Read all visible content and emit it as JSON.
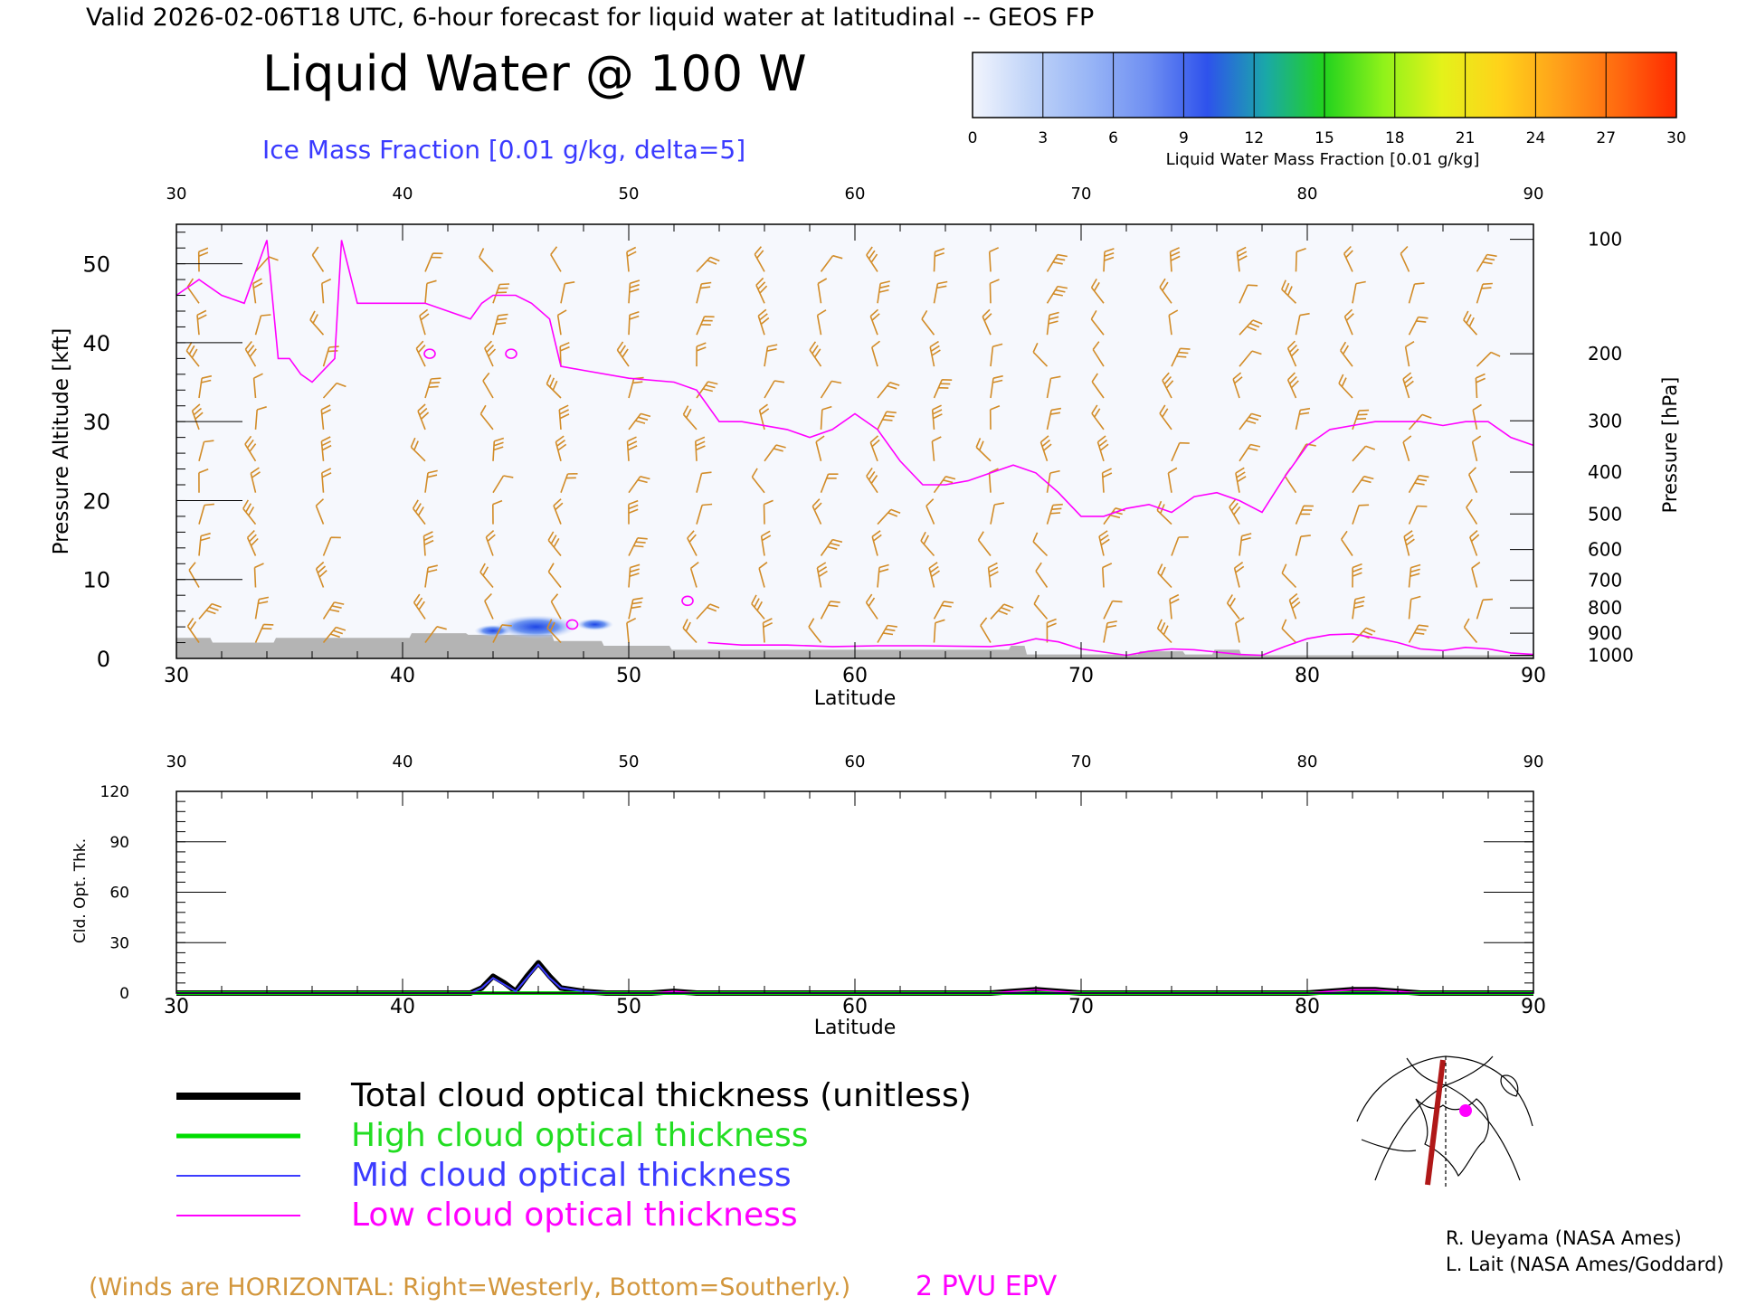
{
  "header": {
    "valid_line": "Valid 2026-02-06T18 UTC, 6-hour forecast for liquid water at latitudinal -- GEOS FP",
    "title": "Liquid Water @ 100 W",
    "subtitle": "Ice Mass Fraction [0.01 g/kg, delta=5]"
  },
  "colorbar": {
    "ticks": [
      "0",
      "3",
      "6",
      "9",
      "12",
      "15",
      "18",
      "21",
      "24",
      "27",
      "30"
    ],
    "label": "Liquid Water Mass Fraction [0.01 g/kg]",
    "colors": [
      "#f2f5fd",
      "#bfd3f8",
      "#98b5f6",
      "#6f8ff2",
      "#2e52ec",
      "#1aa8a8",
      "#22d21e",
      "#8ff21a",
      "#e4f21a",
      "#ffd21a",
      "#ffa01a",
      "#ff6a10",
      "#ff2a00"
    ]
  },
  "colors": {
    "wind_barb": "#d28c28",
    "epv_line": "#ff00ff",
    "terrain": "#b4b4b4",
    "high_cloud": "#00dd00",
    "mid_cloud": "#3c3cff",
    "low_cloud": "#ff00ff",
    "total_cloud": "#000000"
  },
  "chart_data": [
    {
      "type": "heatmap",
      "title": "Liquid Water @ 100 W",
      "xlabel": "Latitude",
      "ylabel": "Pressure Altitude [kft]",
      "ylabel_right": "Pressure [hPa]",
      "xlim": [
        30,
        90
      ],
      "ylim": [
        0,
        55
      ],
      "x_ticks": [
        "30",
        "40",
        "50",
        "60",
        "70",
        "80",
        "90"
      ],
      "y_ticks": [
        "0",
        "10",
        "20",
        "30",
        "40",
        "50"
      ],
      "pressure_ticks": [
        {
          "label": "100",
          "kft": 53.1
        },
        {
          "label": "200",
          "kft": 38.6
        },
        {
          "label": "300",
          "kft": 30.1
        },
        {
          "label": "400",
          "kft": 23.6
        },
        {
          "label": "500",
          "kft": 18.3
        },
        {
          "label": "600",
          "kft": 13.8
        },
        {
          "label": "700",
          "kft": 9.9
        },
        {
          "label": "800",
          "kft": 6.4
        },
        {
          "label": "900",
          "kft": 3.2
        },
        {
          "label": "1000",
          "kft": 0.4
        }
      ],
      "epv_2pvu_line": {
        "lat": [
          30,
          31,
          32,
          33,
          33.5,
          34,
          34.5,
          35,
          35.5,
          36,
          37,
          37.3,
          38,
          39,
          40,
          41,
          42,
          43,
          43.5,
          44,
          45,
          45.7,
          46.5,
          47,
          48,
          50,
          52,
          53,
          54,
          55,
          57,
          58,
          59,
          60,
          61,
          62,
          63,
          64,
          65,
          66,
          67,
          68,
          69,
          70,
          71,
          72,
          73,
          74,
          75,
          76,
          77,
          78,
          79,
          80,
          81,
          82,
          83,
          84,
          85,
          86,
          87,
          88,
          89,
          90
        ],
        "kft": [
          46,
          48,
          46,
          45,
          49,
          53,
          38,
          38,
          36,
          35,
          38,
          53,
          45,
          45,
          45,
          45,
          44,
          43,
          45,
          46,
          46,
          45,
          43,
          37,
          36.5,
          35.5,
          35,
          34,
          30,
          30,
          29,
          28,
          29,
          31,
          29,
          25,
          22,
          22,
          22.5,
          23.5,
          24.5,
          23.5,
          21,
          18,
          18,
          19,
          19.5,
          18.5,
          20.5,
          21,
          20,
          18.5,
          23,
          27,
          29,
          29.5,
          30,
          30,
          30,
          29.5,
          30,
          30,
          28,
          27
        ]
      },
      "epv_small_contours": [
        {
          "lat": 41.2,
          "kft": 38.6
        },
        {
          "lat": 44.8,
          "kft": 38.6
        },
        {
          "lat": 47.5,
          "kft": 4.3
        },
        {
          "lat": 52.6,
          "kft": 7.3
        }
      ],
      "ice_mass_fraction_patches": [
        {
          "lat": 45.9,
          "kft": 4.0,
          "value": 10
        },
        {
          "lat": 44.0,
          "kft": 3.5,
          "value": 3
        },
        {
          "lat": 48.5,
          "kft": 4.3,
          "value": 3
        }
      ],
      "low_cloud_top_line": {
        "lat": [
          53.5,
          55,
          57,
          59,
          61,
          63,
          66,
          67,
          68,
          69,
          70,
          71,
          72,
          73,
          74,
          75,
          76,
          77,
          78,
          79,
          80,
          81,
          82,
          83,
          84,
          85,
          86,
          87,
          88,
          89,
          90
        ],
        "kft": [
          2.0,
          1.7,
          1.7,
          1.5,
          1.6,
          1.6,
          1.5,
          1.8,
          2.5,
          2.1,
          1.2,
          0.8,
          0.4,
          0.9,
          1.2,
          1.1,
          0.8,
          0.5,
          0.4,
          1.5,
          2.5,
          3.0,
          3.1,
          2.6,
          2.0,
          1.2,
          1.0,
          1.4,
          1.2,
          0.7,
          0.5
        ]
      },
      "surface_terrain": {
        "lat": [
          30,
          31.5,
          31.6,
          34.3,
          34.4,
          40.3,
          40.4,
          42.8,
          42.9,
          46.6,
          46.7,
          48.8,
          48.9,
          51.8,
          51.9,
          66.8,
          66.9,
          67.5,
          67.6,
          72.5,
          72.6,
          74.5,
          74.6,
          75.8,
          75.9,
          77.0,
          77.1,
          90
        ],
        "kft": [
          2.6,
          2.6,
          2.0,
          2.0,
          2.6,
          2.6,
          3.2,
          3.2,
          3.0,
          3.0,
          2.2,
          2.2,
          1.6,
          1.6,
          1.1,
          1.1,
          1.6,
          1.6,
          0.5,
          0.5,
          0.9,
          0.9,
          0.5,
          0.5,
          1.1,
          1.1,
          0.4,
          0.4
        ]
      },
      "wind_barbs": {
        "lat": [
          31,
          33.5,
          36.5,
          41,
          44,
          47,
          50,
          53,
          56,
          58.5,
          61,
          63.5,
          66,
          68.5,
          71,
          74,
          77,
          79.5,
          82,
          84.5,
          87.5
        ],
        "kft": [
          49,
          45,
          41,
          37,
          33,
          29,
          25,
          21,
          17,
          13,
          9,
          5,
          2
        ]
      },
      "annotations": [
        "2 PVU EPV",
        "(Winds are HORIZONTAL: Right=Westerly, Bottom=Southerly.)"
      ]
    },
    {
      "type": "line",
      "xlabel": "Latitude",
      "ylabel": "Cld. Opt. Thk.",
      "xlim": [
        30,
        90
      ],
      "ylim": [
        0,
        120
      ],
      "x_ticks": [
        "30",
        "40",
        "50",
        "60",
        "70",
        "80",
        "90"
      ],
      "y_ticks": [
        "0",
        "30",
        "60",
        "90",
        "120"
      ],
      "x": [
        30,
        43,
        43.5,
        44,
        44.5,
        45,
        45.5,
        46,
        46.5,
        47,
        48,
        49,
        50,
        51,
        52,
        53,
        60,
        66,
        67,
        68,
        69,
        70,
        80,
        81,
        82,
        83,
        84,
        85,
        90
      ],
      "series": [
        {
          "name": "Total cloud optical thickness (unitless)",
          "values": [
            0,
            0,
            3,
            10,
            6,
            1,
            10,
            18,
            10,
            3,
            1,
            0,
            0,
            0,
            1,
            0,
            0,
            0,
            1,
            2,
            1,
            0,
            0,
            1,
            2,
            2,
            1,
            0,
            0
          ]
        },
        {
          "name": "High cloud optical thickness",
          "values": [
            0,
            0,
            0,
            0,
            0,
            0,
            0,
            0,
            0,
            0,
            0,
            0,
            0,
            0,
            0,
            0,
            0,
            0,
            0,
            0,
            0,
            0,
            0,
            0,
            0,
            0,
            0,
            0,
            0
          ]
        },
        {
          "name": "Mid cloud optical thickness",
          "values": [
            0,
            0,
            3,
            9,
            5,
            1,
            9,
            17,
            9,
            3,
            1,
            0,
            0,
            0,
            0,
            0,
            0,
            0,
            0,
            0,
            0,
            0,
            0,
            0,
            0,
            0,
            0,
            0,
            0
          ]
        },
        {
          "name": "Low cloud optical thickness",
          "values": [
            0,
            0,
            0,
            0,
            0,
            0,
            0,
            0,
            0,
            0,
            0,
            0,
            0,
            0,
            1,
            0,
            0,
            0,
            1,
            2,
            1,
            0,
            0,
            1,
            2,
            2,
            1,
            0,
            0
          ]
        }
      ]
    }
  ],
  "legend": {
    "total": "Total cloud optical thickness (unitless)",
    "high": "High cloud optical thickness",
    "mid": "Mid cloud optical thickness",
    "low": "Low cloud optical thickness"
  },
  "footer": {
    "winds_note": "(Winds are HORIZONTAL: Right=Westerly, Bottom=Southerly.)",
    "epv_label": "2 PVU EPV",
    "credit1": "R. Ueyama (NASA Ames)",
    "credit2": "L. Lait (NASA Ames/Goddard)"
  },
  "inset_map": {
    "icon": "locator-map-icon"
  }
}
